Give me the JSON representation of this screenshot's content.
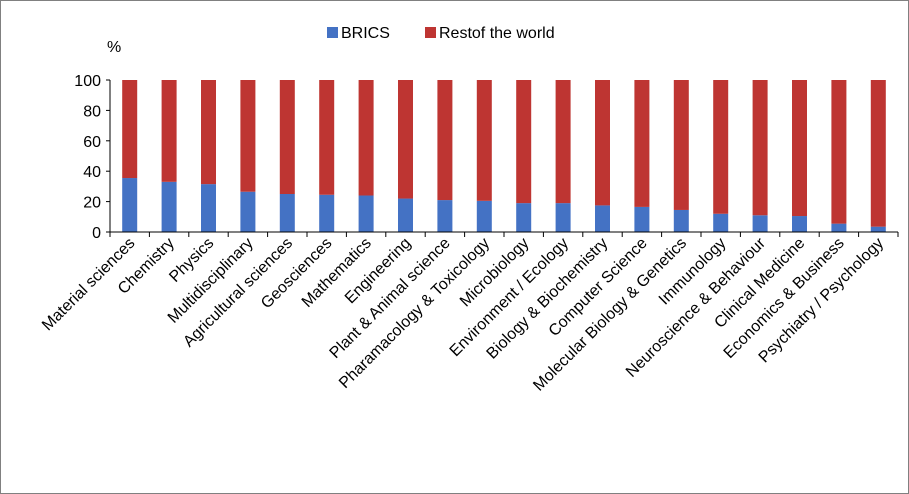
{
  "chart_data": {
    "type": "bar",
    "stacked": true,
    "percent_scale": true,
    "ylabel": "%",
    "ylim": [
      0,
      100
    ],
    "yticks": [
      0,
      20,
      40,
      60,
      80,
      100
    ],
    "grid": false,
    "legend_position": "top",
    "categories": [
      "Material sciences",
      "Chemistry",
      "Physics",
      "Multidisciplinary",
      "Agricultural sciences",
      "Geosciences",
      "Mathematics",
      "Engineering",
      "Plant & Animal science",
      "Pharamacology & Toxicology",
      "Microbiology",
      "Environment / Ecology",
      "Biology & Biochemistry",
      "Computer Science",
      "Molecular Biology & Genetics",
      "Immunology",
      "Neuroscience & Behaviour",
      "Clinical Medicine",
      "Economics & Business",
      "Psychiatry / Psychology"
    ],
    "series": [
      {
        "name": "BRICS",
        "color": "#4472c4",
        "values": [
          35.5,
          33,
          31.5,
          26.5,
          25,
          24.5,
          24,
          22,
          21,
          20.5,
          19,
          19,
          17.5,
          16.5,
          14.5,
          12,
          11,
          10.5,
          5.5,
          3.5
        ]
      },
      {
        "name": "Restof the world",
        "color": "#be3532",
        "values": [
          64.5,
          67,
          68.5,
          73.5,
          75,
          75.5,
          76,
          78,
          79,
          79.5,
          81,
          81,
          82.5,
          83.5,
          85.5,
          88,
          89,
          89.5,
          94.5,
          96.5
        ]
      }
    ]
  }
}
